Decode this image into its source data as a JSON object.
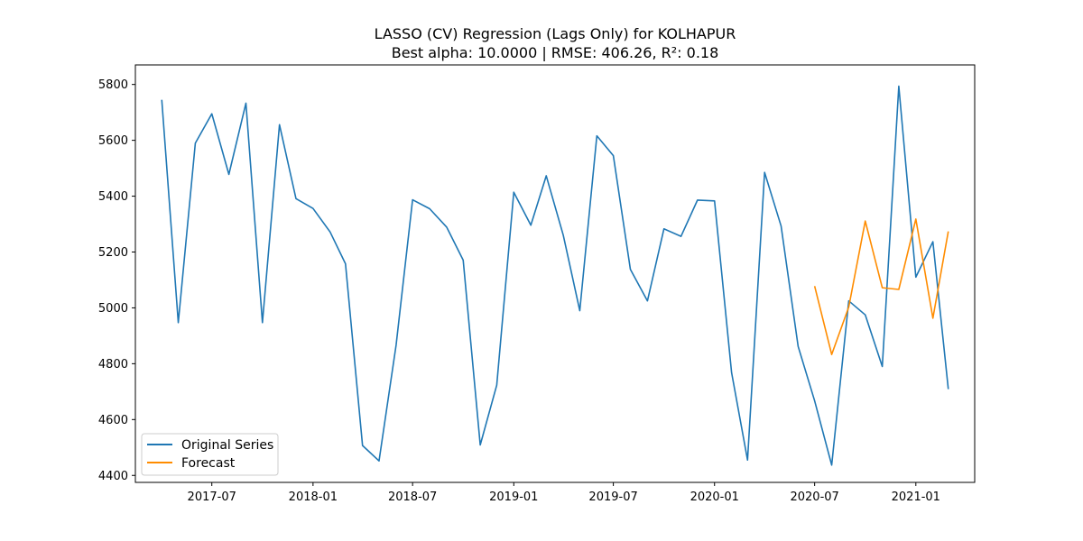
{
  "chart_data": {
    "type": "line",
    "title": "LASSO (CV) Regression (Lags Only) for KOLHAPUR",
    "subtitle": "Best alpha: 10.0000 | RMSE: 406.26, R²: 0.18",
    "xlabel": "",
    "ylabel": "",
    "xlim": [
      "2017-02-12",
      "2021-04-18"
    ],
    "ylim": [
      4375,
      5870
    ],
    "xticks": [
      {
        "date": "2017-07-01",
        "label": "2017-07"
      },
      {
        "date": "2018-01-01",
        "label": "2018-01"
      },
      {
        "date": "2018-07-01",
        "label": "2018-07"
      },
      {
        "date": "2019-01-01",
        "label": "2019-01"
      },
      {
        "date": "2019-07-01",
        "label": "2019-07"
      },
      {
        "date": "2020-01-01",
        "label": "2020-01"
      },
      {
        "date": "2020-07-01",
        "label": "2020-07"
      },
      {
        "date": "2021-01-01",
        "label": "2021-01"
      }
    ],
    "yticks": [
      4400,
      4600,
      4800,
      5000,
      5200,
      5400,
      5600,
      5800
    ],
    "grid": false,
    "legend": "lower-left",
    "series": [
      {
        "name": "Original Series",
        "color": "#1f77b4",
        "points": [
          [
            "2017-04-01",
            5745
          ],
          [
            "2017-05-01",
            4947
          ],
          [
            "2017-06-01",
            5590
          ],
          [
            "2017-07-01",
            5695
          ],
          [
            "2017-08-01",
            5478
          ],
          [
            "2017-09-01",
            5733
          ],
          [
            "2017-10-01",
            4947
          ],
          [
            "2017-11-01",
            5656
          ],
          [
            "2017-12-01",
            5391
          ],
          [
            "2018-01-01",
            5356
          ],
          [
            "2018-02-01",
            5272
          ],
          [
            "2018-03-01",
            5158
          ],
          [
            "2018-04-01",
            4507
          ],
          [
            "2018-05-01",
            4452
          ],
          [
            "2018-06-01",
            4866
          ],
          [
            "2018-07-01",
            5387
          ],
          [
            "2018-08-01",
            5355
          ],
          [
            "2018-09-01",
            5289
          ],
          [
            "2018-10-01",
            5171
          ],
          [
            "2018-11-01",
            4509
          ],
          [
            "2018-12-01",
            4723
          ],
          [
            "2019-01-01",
            5414
          ],
          [
            "2019-02-01",
            5296
          ],
          [
            "2019-03-01",
            5473
          ],
          [
            "2019-04-01",
            5260
          ],
          [
            "2019-05-01",
            4990
          ],
          [
            "2019-06-01",
            5616
          ],
          [
            "2019-07-01",
            5545
          ],
          [
            "2019-08-01",
            5138
          ],
          [
            "2019-09-01",
            5025
          ],
          [
            "2019-10-01",
            5283
          ],
          [
            "2019-11-01",
            5256
          ],
          [
            "2019-12-01",
            5386
          ],
          [
            "2020-01-01",
            5383
          ],
          [
            "2020-02-01",
            4768
          ],
          [
            "2020-03-01",
            4455
          ],
          [
            "2020-04-01",
            5485
          ],
          [
            "2020-05-01",
            5293
          ],
          [
            "2020-06-01",
            4862
          ],
          [
            "2020-07-01",
            4667
          ],
          [
            "2020-08-01",
            4437
          ],
          [
            "2020-09-01",
            5025
          ],
          [
            "2020-10-01",
            4975
          ],
          [
            "2020-11-01",
            4790
          ],
          [
            "2020-12-01",
            5794
          ],
          [
            "2021-01-01",
            5110
          ],
          [
            "2021-02-01",
            5237
          ],
          [
            "2021-03-01",
            4709
          ]
        ]
      },
      {
        "name": "Forecast",
        "color": "#ff8c00",
        "points": [
          [
            "2020-07-01",
            5078
          ],
          [
            "2020-08-01",
            4833
          ],
          [
            "2020-09-01",
            5003
          ],
          [
            "2020-10-01",
            5311
          ],
          [
            "2020-11-01",
            5072
          ],
          [
            "2020-12-01",
            5066
          ],
          [
            "2021-01-01",
            5318
          ],
          [
            "2021-02-01",
            4963
          ],
          [
            "2021-03-01",
            5274
          ]
        ]
      }
    ]
  }
}
